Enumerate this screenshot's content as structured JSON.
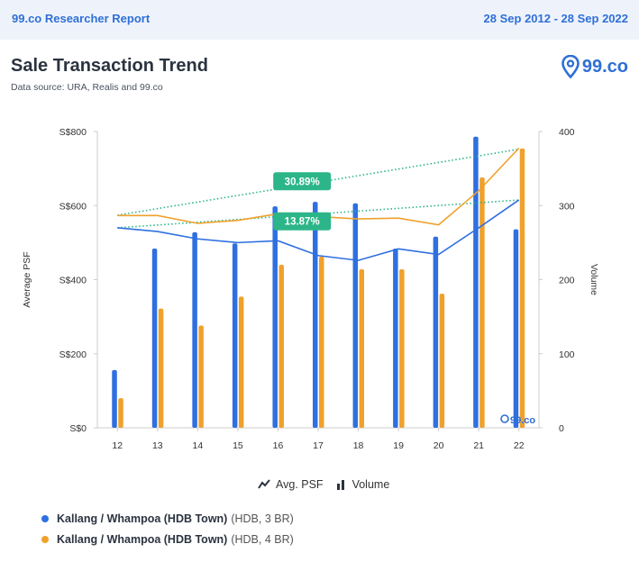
{
  "header": {
    "brand": "99.co Researcher Report",
    "date_range": "28 Sep 2012 - 28 Sep 2022"
  },
  "title": "Sale Transaction Trend",
  "subtitle": "Data source: URA, Realis and 99.co",
  "logo_text": "99.co",
  "watermark_text": "99.co",
  "legend": {
    "avg_psf": "Avg. PSF",
    "volume": "Volume"
  },
  "series_legend": [
    {
      "name": "Kallang / Whampoa (HDB Town)",
      "detail": "(HDB, 3 BR)",
      "color": "#2f6fe0"
    },
    {
      "name": "Kallang / Whampoa (HDB Town)",
      "detail": "(HDB, 4 BR)",
      "color": "#efa12c"
    }
  ],
  "chart_data": {
    "type": "bar",
    "x": [
      "12",
      "13",
      "14",
      "15",
      "16",
      "17",
      "18",
      "19",
      "20",
      "21",
      "22"
    ],
    "ylabel": "Average PSF",
    "y2label": "Volume",
    "ylim": [
      0,
      800
    ],
    "y2lim": [
      0,
      400
    ],
    "yticks": [
      "S$0",
      "S$200",
      "S$400",
      "S$600",
      "S$800"
    ],
    "y2ticks": [
      "0",
      "100",
      "200",
      "300",
      "400"
    ],
    "series": [
      {
        "name": "Kallang / Whampoa (HDB Town) (HDB, 3 BR)",
        "kind": "volume_bar",
        "axis": "right",
        "color": "#2f6fe0",
        "values": [
          78,
          242,
          264,
          249,
          299,
          305,
          303,
          242,
          258,
          393,
          268
        ]
      },
      {
        "name": "Kallang / Whampoa (HDB Town) (HDB, 4 BR)",
        "kind": "volume_bar",
        "axis": "right",
        "color": "#efa12c",
        "values": [
          40,
          161,
          138,
          177,
          220,
          231,
          214,
          214,
          181,
          338,
          377
        ]
      },
      {
        "name": "Kallang / Whampoa (HDB Town) (HDB, 3 BR)",
        "kind": "avg_psf_line",
        "axis": "left",
        "color": "#2f6fe0",
        "values": [
          540,
          530,
          510,
          500,
          505,
          465,
          452,
          483,
          468,
          540,
          615
        ]
      },
      {
        "name": "Kallang / Whampoa (HDB Town) (HDB, 4 BR)",
        "kind": "avg_psf_line",
        "axis": "left",
        "color": "#efa12c",
        "values": [
          573,
          573,
          552,
          560,
          578,
          570,
          564,
          566,
          548,
          640,
          755
        ]
      }
    ],
    "trendlines": [
      {
        "color": "#2cb588",
        "start": 574,
        "end": 752,
        "label": "30.89%"
      },
      {
        "color": "#2cb588",
        "start": 540,
        "end": 615,
        "label": "13.87%"
      }
    ]
  }
}
